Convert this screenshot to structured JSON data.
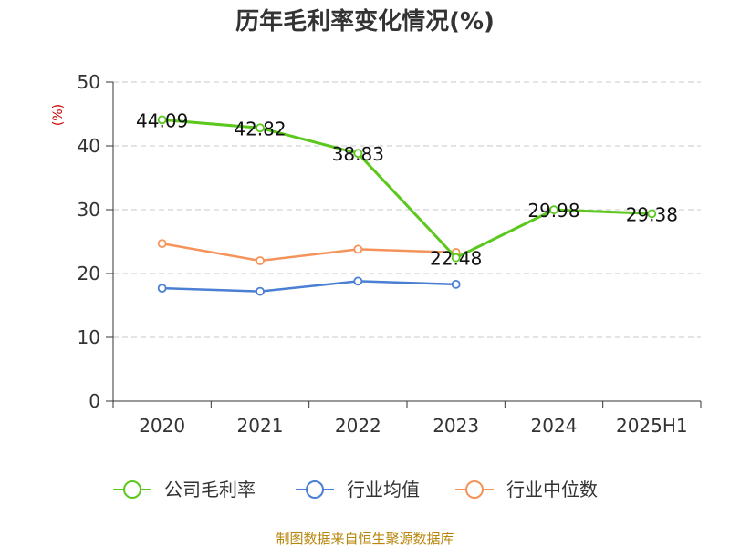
{
  "chart_data": {
    "type": "line",
    "title": "历年毛利率变化情况(%)",
    "ylabel": "(%)",
    "xlabel": "",
    "categories": [
      "2020",
      "2021",
      "2022",
      "2023",
      "2024",
      "2025H1"
    ],
    "ylim": [
      0,
      50
    ],
    "yticks": [
      0,
      10,
      20,
      30,
      40,
      50
    ],
    "grid": true,
    "legend_position": "bottom",
    "series": [
      {
        "name": "公司毛利率",
        "color": "#5cc81e",
        "values": [
          44.09,
          42.82,
          38.83,
          22.48,
          29.98,
          29.38
        ],
        "labels": [
          "44.09",
          "42.82",
          "38.83",
          "22.48",
          "29.98",
          "29.38"
        ],
        "show_labels": true
      },
      {
        "name": "行业均值",
        "color": "#4a7fd4",
        "values": [
          17.7,
          17.2,
          18.8,
          18.3,
          null,
          null
        ],
        "show_labels": false
      },
      {
        "name": "行业中位数",
        "color": "#f5935a",
        "values": [
          24.7,
          22.0,
          23.8,
          23.3,
          null,
          null
        ],
        "show_labels": false
      }
    ],
    "source": "制图数据来自恒生聚源数据库"
  }
}
